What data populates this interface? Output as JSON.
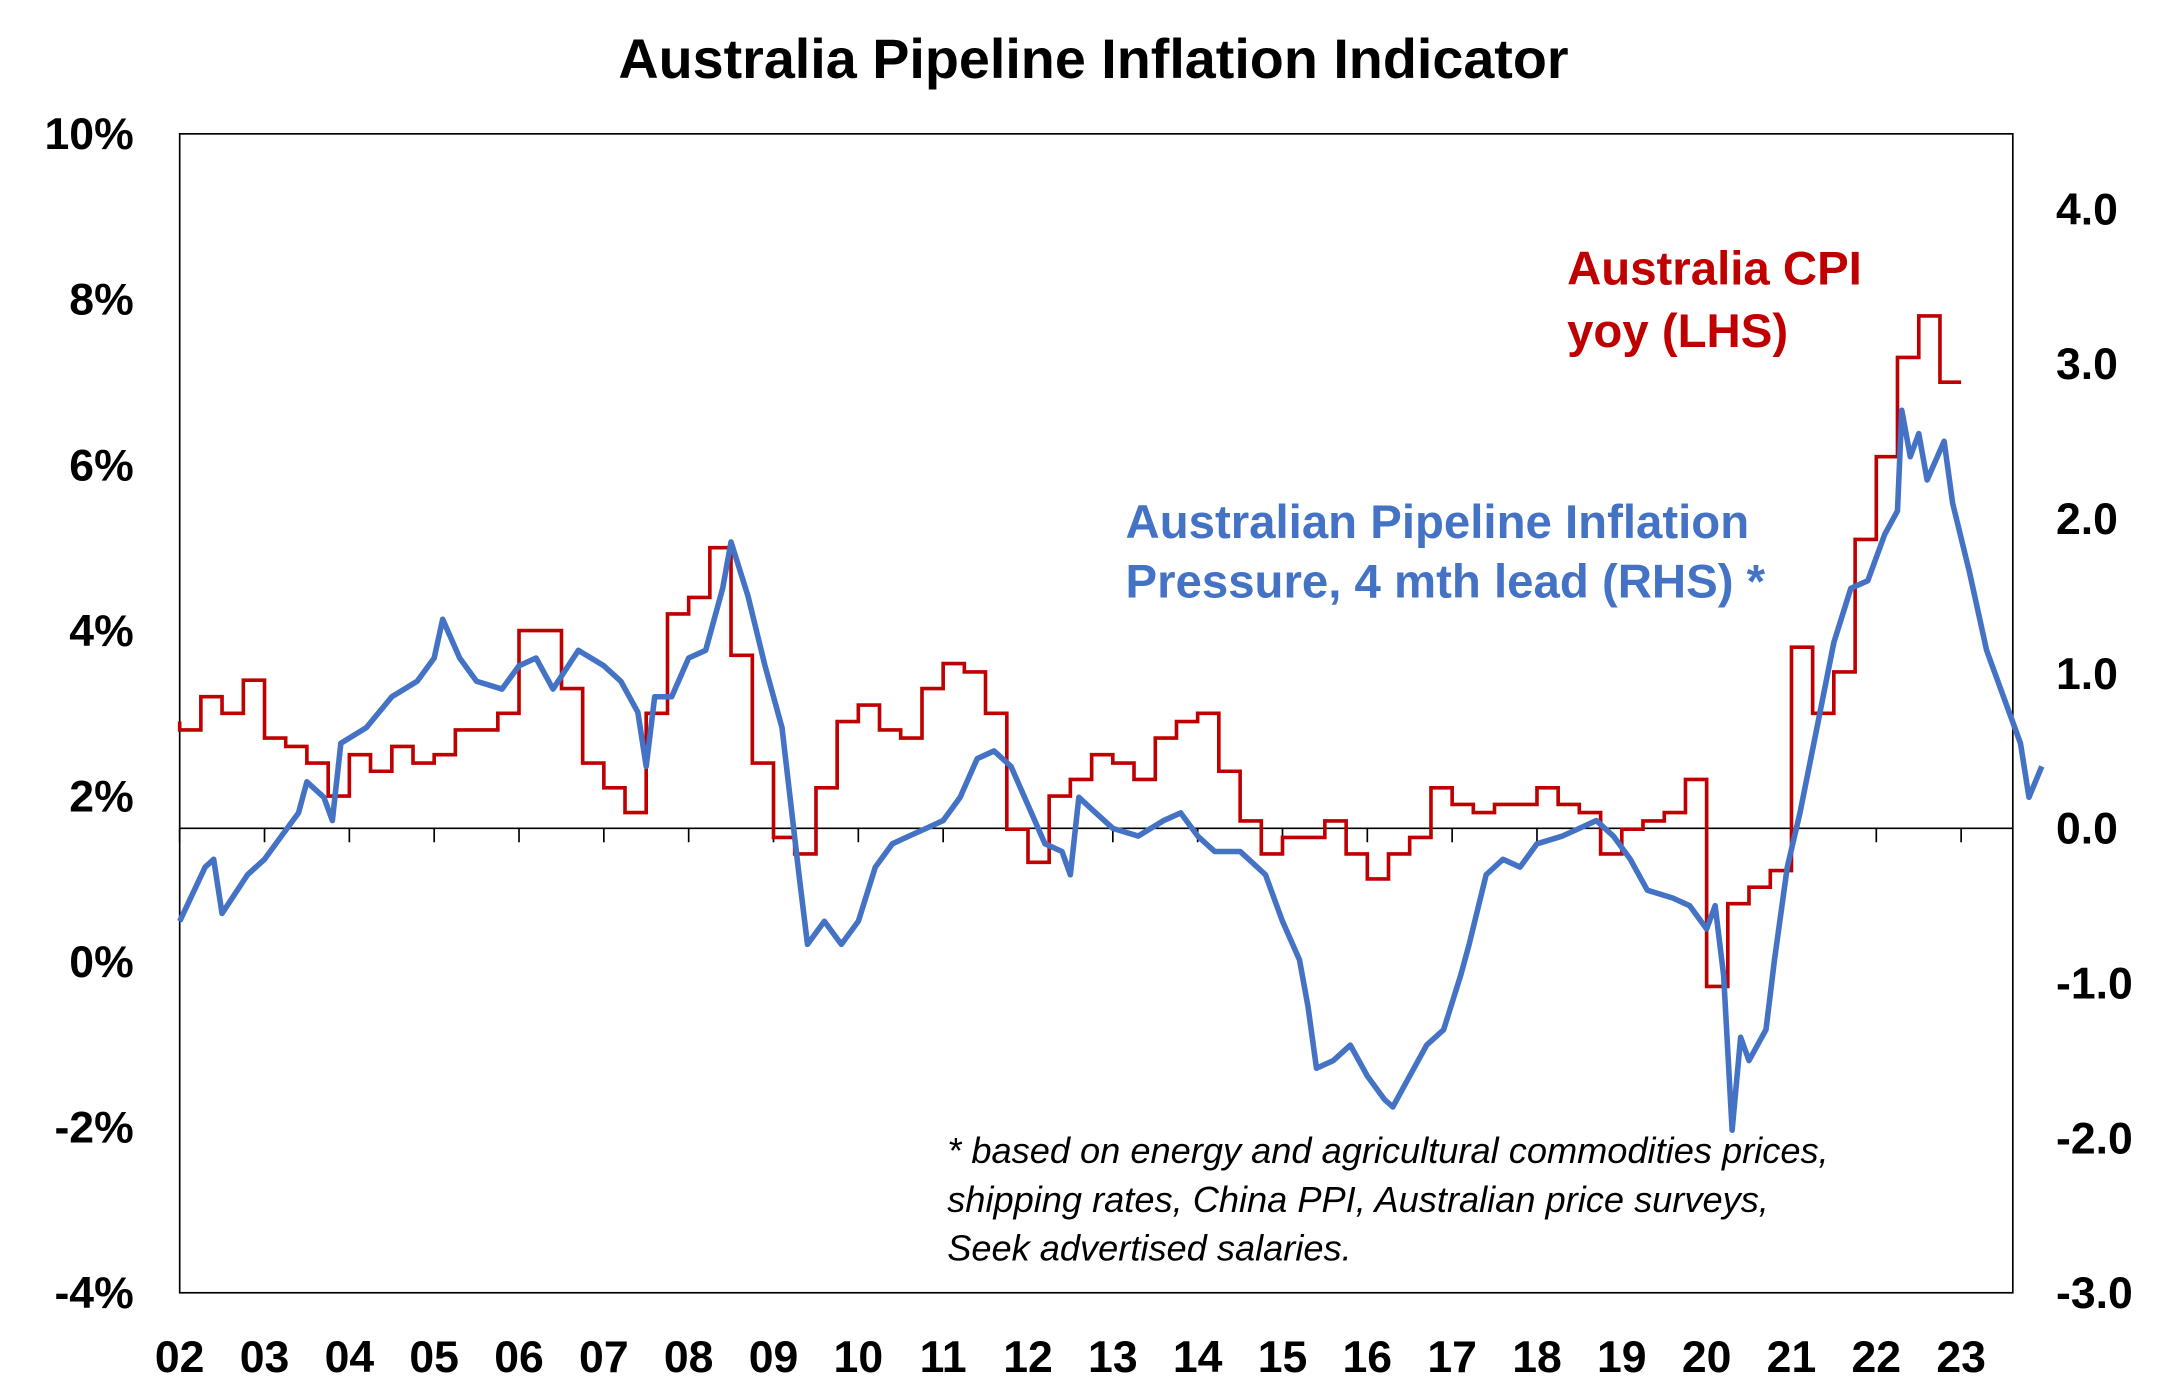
{
  "chart_data": {
    "type": "line",
    "title": "Australia Pipeline Inflation Indicator",
    "x_tick_labels": [
      "02",
      "03",
      "04",
      "05",
      "06",
      "07",
      "08",
      "09",
      "10",
      "11",
      "12",
      "13",
      "14",
      "15",
      "16",
      "17",
      "18",
      "19",
      "20",
      "21",
      "22",
      "23"
    ],
    "x_range": [
      2002,
      2023.6
    ],
    "left_axis": {
      "range": [
        -4,
        10
      ],
      "tick_labels": [
        "10%",
        "8%",
        "6%",
        "4%",
        "2%",
        "0%",
        "-2%",
        "-4%"
      ],
      "ticks": [
        10,
        8,
        6,
        4,
        2,
        0,
        -2,
        -4
      ]
    },
    "right_axis": {
      "range": [
        -3.0,
        4.486
      ],
      "tick_labels": [
        "4.0",
        "3.0",
        "2.0",
        "1.0",
        "0.0",
        "-1.0",
        "-2.0",
        "-3.0"
      ],
      "ticks": [
        4,
        3,
        2,
        1,
        0,
        -1,
        -2,
        -3
      ]
    },
    "grid": false,
    "zero_line": "right axis 0.0",
    "series": [
      {
        "name": "Australia CPI yoy (LHS)",
        "label_lines": [
          "Australia CPI",
          "yoy (LHS)"
        ],
        "axis": "left",
        "color": "#C00000",
        "style": "step",
        "x": [
          "2002Q1",
          "2002Q2",
          "2002Q3",
          "2002Q4",
          "2003Q1",
          "2003Q2",
          "2003Q3",
          "2003Q4",
          "2004Q1",
          "2004Q2",
          "2004Q3",
          "2004Q4",
          "2005Q1",
          "2005Q2",
          "2005Q3",
          "2005Q4",
          "2006Q1",
          "2006Q2",
          "2006Q3",
          "2006Q4",
          "2007Q1",
          "2007Q2",
          "2007Q3",
          "2007Q4",
          "2008Q1",
          "2008Q2",
          "2008Q3",
          "2008Q4",
          "2009Q1",
          "2009Q2",
          "2009Q3",
          "2009Q4",
          "2010Q1",
          "2010Q2",
          "2010Q3",
          "2010Q4",
          "2011Q1",
          "2011Q2",
          "2011Q3",
          "2011Q4",
          "2012Q1",
          "2012Q2",
          "2012Q3",
          "2012Q4",
          "2013Q1",
          "2013Q2",
          "2013Q3",
          "2013Q4",
          "2014Q1",
          "2014Q2",
          "2014Q3",
          "2014Q4",
          "2015Q1",
          "2015Q2",
          "2015Q3",
          "2015Q4",
          "2016Q1",
          "2016Q2",
          "2016Q3",
          "2016Q4",
          "2017Q1",
          "2017Q2",
          "2017Q3",
          "2017Q4",
          "2018Q1",
          "2018Q2",
          "2018Q3",
          "2018Q4",
          "2019Q1",
          "2019Q2",
          "2019Q3",
          "2019Q4",
          "2020Q1",
          "2020Q2",
          "2020Q3",
          "2020Q4",
          "2021Q1",
          "2021Q2",
          "2021Q3",
          "2021Q4",
          "2022Q1",
          "2022Q2",
          "2022Q3",
          "2022Q4",
          "2023Q1"
        ],
        "values": [
          2.9,
          2.8,
          3.2,
          3.0,
          3.4,
          2.7,
          2.6,
          2.4,
          2.0,
          2.5,
          2.3,
          2.6,
          2.4,
          2.5,
          2.8,
          2.8,
          3.0,
          4.0,
          4.0,
          3.3,
          2.4,
          2.1,
          1.8,
          3.0,
          4.2,
          4.4,
          5.0,
          3.7,
          2.4,
          1.5,
          1.3,
          2.1,
          2.9,
          3.1,
          2.8,
          2.7,
          3.3,
          3.6,
          3.5,
          3.0,
          1.6,
          1.2,
          2.0,
          2.2,
          2.5,
          2.4,
          2.2,
          2.7,
          2.9,
          3.0,
          2.3,
          1.7,
          1.3,
          1.5,
          1.5,
          1.7,
          1.3,
          1.0,
          1.3,
          1.5,
          2.1,
          1.9,
          1.8,
          1.9,
          1.9,
          2.1,
          1.9,
          1.8,
          1.3,
          1.6,
          1.7,
          1.8,
          2.2,
          -0.3,
          0.7,
          0.9,
          1.1,
          3.8,
          3.0,
          3.5,
          5.1,
          6.1,
          7.3,
          7.8,
          7.0
        ]
      },
      {
        "name": "Australian Pipeline Inflation Pressure, 4 mth lead (RHS) *",
        "label_lines": [
          "Australian Pipeline Inflation",
          "Pressure, 4 mth lead (RHS) *"
        ],
        "axis": "right",
        "color": "#4472C4",
        "style": "line",
        "x": [
          2002.0,
          2002.3,
          2002.4,
          2002.5,
          2002.8,
          2003.0,
          2003.2,
          2003.4,
          2003.5,
          2003.7,
          2003.8,
          2003.9,
          2004.2,
          2004.5,
          2004.8,
          2005.0,
          2005.1,
          2005.3,
          2005.5,
          2005.8,
          2006.0,
          2006.2,
          2006.4,
          2006.7,
          2007.0,
          2007.2,
          2007.4,
          2007.5,
          2007.6,
          2007.8,
          2008.0,
          2008.2,
          2008.4,
          2008.5,
          2008.7,
          2008.9,
          2009.1,
          2009.3,
          2009.4,
          2009.6,
          2009.8,
          2010.0,
          2010.2,
          2010.4,
          2010.6,
          2010.8,
          2011.0,
          2011.2,
          2011.4,
          2011.6,
          2011.8,
          2012.0,
          2012.2,
          2012.4,
          2012.5,
          2012.6,
          2012.8,
          2013.0,
          2013.3,
          2013.6,
          2013.8,
          2014.0,
          2014.2,
          2014.5,
          2014.8,
          2015.0,
          2015.2,
          2015.3,
          2015.4,
          2015.6,
          2015.8,
          2016.0,
          2016.2,
          2016.3,
          2016.5,
          2016.7,
          2016.9,
          2017.1,
          2017.2,
          2017.4,
          2017.6,
          2017.8,
          2018.0,
          2018.3,
          2018.5,
          2018.7,
          2018.9,
          2019.1,
          2019.3,
          2019.6,
          2019.8,
          2020.0,
          2020.1,
          2020.2,
          2020.3,
          2020.4,
          2020.5,
          2020.7,
          2020.8,
          2020.95,
          2021.1,
          2021.3,
          2021.5,
          2021.7,
          2021.9,
          2022.1,
          2022.25,
          2022.3,
          2022.4,
          2022.5,
          2022.6,
          2022.8,
          2022.9,
          2023.1,
          2023.3,
          2023.5,
          2023.7,
          2023.8,
          2023.95
        ],
        "values": [
          -0.6,
          -0.25,
          -0.2,
          -0.55,
          -0.3,
          -0.2,
          -0.05,
          0.1,
          0.3,
          0.2,
          0.05,
          0.55,
          0.65,
          0.85,
          0.95,
          1.1,
          1.35,
          1.1,
          0.95,
          0.9,
          1.05,
          1.1,
          0.9,
          1.15,
          1.05,
          0.95,
          0.75,
          0.4,
          0.85,
          0.85,
          1.1,
          1.15,
          1.55,
          1.85,
          1.5,
          1.05,
          0.65,
          -0.3,
          -0.75,
          -0.6,
          -0.75,
          -0.6,
          -0.25,
          -0.1,
          -0.05,
          0.0,
          0.05,
          0.2,
          0.45,
          0.5,
          0.4,
          0.15,
          -0.1,
          -0.15,
          -0.3,
          0.2,
          0.1,
          0.0,
          -0.05,
          0.05,
          0.1,
          -0.05,
          -0.15,
          -0.15,
          -0.3,
          -0.6,
          -0.85,
          -1.15,
          -1.55,
          -1.5,
          -1.4,
          -1.6,
          -1.75,
          -1.8,
          -1.6,
          -1.4,
          -1.3,
          -0.95,
          -0.75,
          -0.3,
          -0.2,
          -0.25,
          -0.1,
          -0.05,
          0.0,
          0.05,
          -0.05,
          -0.2,
          -0.4,
          -0.45,
          -0.5,
          -0.65,
          -0.5,
          -0.95,
          -1.95,
          -1.35,
          -1.5,
          -1.3,
          -0.85,
          -0.25,
          0.1,
          0.65,
          1.2,
          1.55,
          1.6,
          1.9,
          2.05,
          2.7,
          2.4,
          2.55,
          2.25,
          2.5,
          2.1,
          1.65,
          1.15,
          0.85,
          0.55,
          0.2,
          0.4
        ]
      }
    ],
    "footnote": [
      "* based on energy and agricultural commodities prices,",
      "shipping rates, China PPI, Australian price surveys,",
      "Seek advertised salaries."
    ]
  }
}
